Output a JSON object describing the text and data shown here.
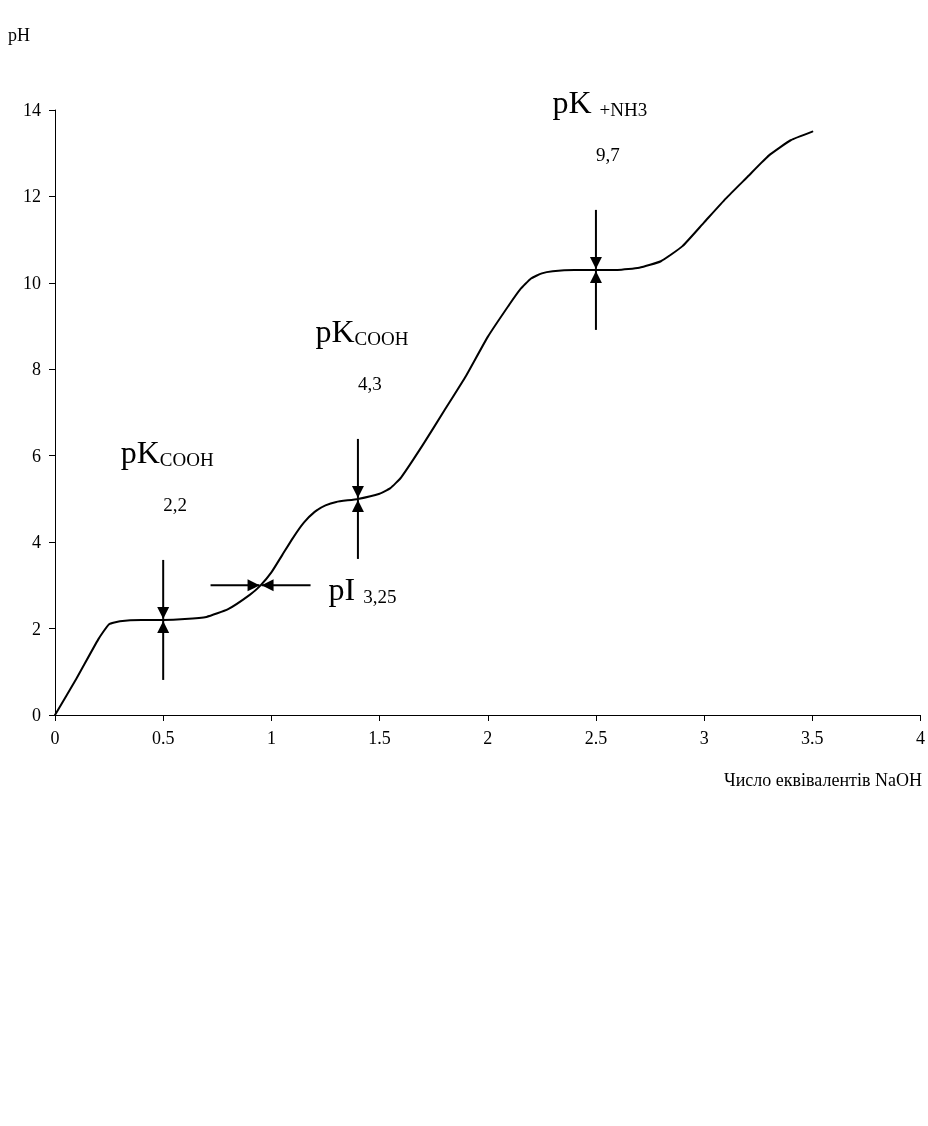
{
  "chart_data": {
    "type": "line",
    "xlabel": "Число еквівалентів NaOH",
    "ylabel": "pH",
    "x": [
      0,
      0.1,
      0.2,
      0.25,
      0.3,
      0.4,
      0.5,
      0.6,
      0.7,
      0.8,
      0.9,
      0.95,
      1.0,
      1.05,
      1.1,
      1.15,
      1.2,
      1.25,
      1.3,
      1.4,
      1.5,
      1.55,
      1.6,
      1.7,
      1.8,
      1.9,
      2.0,
      2.1,
      2.15,
      2.2,
      2.25,
      2.3,
      2.4,
      2.5,
      2.6,
      2.7,
      2.8,
      2.9,
      3.0,
      3.1,
      3.2,
      3.3,
      3.4,
      3.5
    ],
    "series": [
      {
        "color": "#000000",
        "values": [
          0,
          0.85,
          1.75,
          2.1,
          2.17,
          2.2,
          2.2,
          2.22,
          2.27,
          2.45,
          2.78,
          3.0,
          3.3,
          3.7,
          4.1,
          4.45,
          4.7,
          4.85,
          4.93,
          5.0,
          5.12,
          5.25,
          5.5,
          6.25,
          7.05,
          7.85,
          8.75,
          9.5,
          9.85,
          10.1,
          10.22,
          10.27,
          10.3,
          10.3,
          10.3,
          10.35,
          10.5,
          10.85,
          11.4,
          11.95,
          12.45,
          12.95,
          13.3,
          13.5
        ]
      }
    ],
    "xlim": [
      0,
      4
    ],
    "xticks": [
      0,
      0.5,
      1,
      1.5,
      2,
      2.5,
      3,
      3.5,
      4
    ],
    "ylim": [
      0,
      14
    ],
    "yticks": [
      0,
      2,
      4,
      6,
      8,
      10,
      12,
      14
    ],
    "grid": false,
    "marker": "none",
    "line_style": "solid",
    "annotations": [
      "pK$_{COOH}$",
      "2,2",
      "pK$_{COOH}$",
      "4,3",
      "pK $_{+NH3}$",
      "9,7",
      {
        "text": "pI $_{3,25}$",
        "x": 0.95,
        "y": 3.0
      }
    ]
  }
}
